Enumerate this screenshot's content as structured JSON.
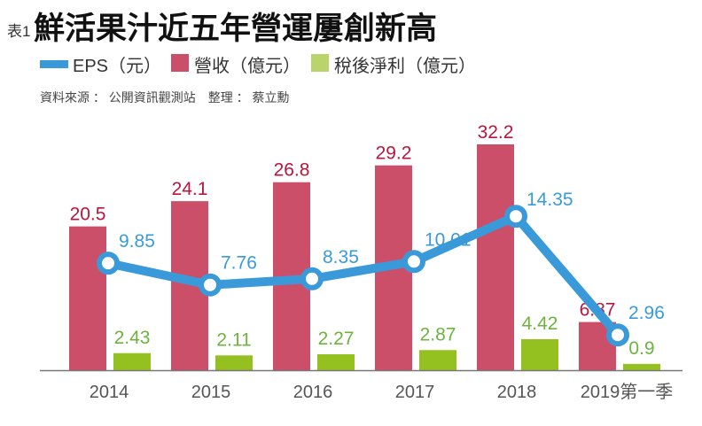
{
  "chart_data": {
    "type": "bar",
    "table_no": "表1",
    "title": "鮮活果汁近五年營運屢創新高",
    "source": "資料來源 ： 公開資訊觀測站　整理 ： 蔡立勳",
    "categories": [
      "2014",
      "2015",
      "2016",
      "2017",
      "2018",
      "2019第一季"
    ],
    "series": [
      {
        "name": "EPS（元）",
        "type": "line",
        "color": "#3a9ad9",
        "values": [
          9.85,
          7.76,
          8.35,
          10.01,
          14.35,
          2.96
        ]
      },
      {
        "name": "營收（億元）",
        "type": "bar",
        "color": "#cc4f6a",
        "label_color": "#b8163f",
        "values": [
          20.5,
          24.1,
          26.8,
          29.2,
          32.2,
          6.87
        ]
      },
      {
        "name": "稅後淨利（億元）",
        "type": "bar",
        "color": "#94c11f",
        "label_color": "#6db33f",
        "values": [
          2.43,
          2.11,
          2.27,
          2.87,
          4.42,
          0.9
        ]
      }
    ],
    "legend": "top-left",
    "grid": false
  }
}
